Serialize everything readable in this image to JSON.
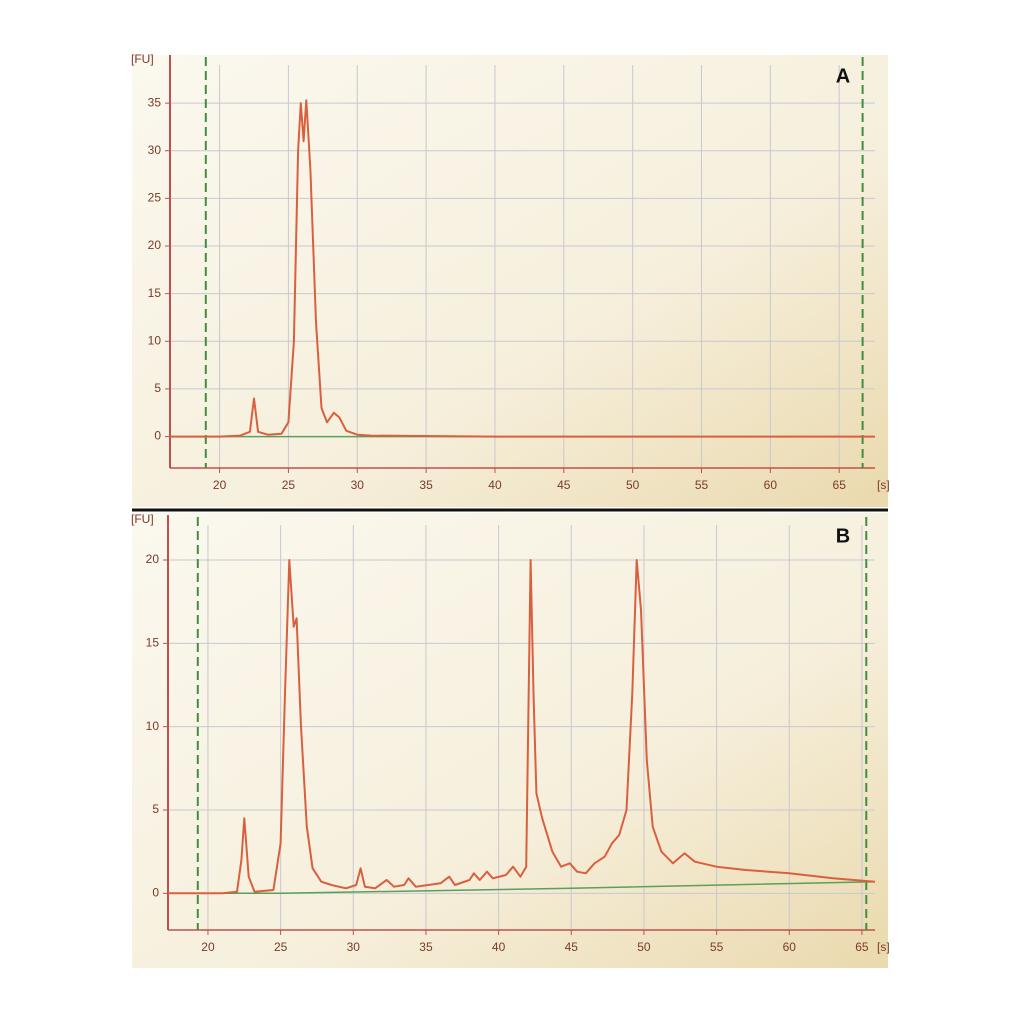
{
  "chart_data": [
    {
      "type": "line",
      "panel_label": "A",
      "y_label": "[FU]",
      "x_label": "[s]",
      "xlim": [
        16.4,
        67.6
      ],
      "ylim": [
        -3.3,
        39
      ],
      "xticks": [
        20,
        25,
        30,
        35,
        40,
        45,
        50,
        55,
        60,
        65
      ],
      "yticks": [
        0,
        5,
        10,
        15,
        20,
        25,
        30,
        35
      ],
      "grid": true,
      "markers": [
        19,
        66.7
      ],
      "marker_color": "#3f8f3f",
      "x": [
        16.4,
        20,
        21.5,
        22.2,
        22.5,
        22.8,
        23.5,
        24.5,
        25,
        25.4,
        25.7,
        25.9,
        26.1,
        26.3,
        26.6,
        27,
        27.4,
        27.8,
        28.3,
        28.7,
        29.2,
        30,
        31,
        40,
        67.6
      ],
      "series": [
        {
          "color": "#d9603f",
          "values": [
            0,
            0,
            0.1,
            0.5,
            4,
            0.5,
            0.2,
            0.3,
            1.5,
            10,
            30,
            35,
            31,
            35.3,
            28,
            12,
            3,
            1.5,
            2.5,
            2,
            0.6,
            0.2,
            0.1,
            0,
            0
          ]
        }
      ],
      "baseline": {
        "color": "#5aa05a",
        "x": [
          16.4,
          67.6
        ],
        "values": [
          0,
          0
        ]
      }
    },
    {
      "type": "line",
      "panel_label": "B",
      "y_label": "[FU]",
      "x_label": "[s]",
      "xlim": [
        17.25,
        65.9
      ],
      "ylim": [
        -2.2,
        22.1
      ],
      "xticks": [
        20,
        25,
        30,
        35,
        40,
        45,
        50,
        55,
        60,
        65
      ],
      "yticks": [
        0,
        5,
        10,
        15,
        20
      ],
      "grid": true,
      "markers": [
        19.3,
        65.3
      ],
      "marker_color": "#3f8f3f",
      "x": [
        17.25,
        21,
        22,
        22.3,
        22.5,
        22.8,
        23.2,
        24.5,
        25,
        25.3,
        25.6,
        25.9,
        26.1,
        26.4,
        26.8,
        27.2,
        27.8,
        28.5,
        29.5,
        30.2,
        30.5,
        30.8,
        31.5,
        32.3,
        32.8,
        33.5,
        33.8,
        34.3,
        36,
        36.6,
        37,
        38,
        38.3,
        38.7,
        39.2,
        39.6,
        40.5,
        41,
        41.5,
        41.9,
        42.2,
        42.4,
        42.6,
        43,
        43.7,
        44.3,
        44.9,
        45.4,
        46,
        46.6,
        47.3,
        47.8,
        48.3,
        48.8,
        49.2,
        49.5,
        49.8,
        50.2,
        50.6,
        51.2,
        52,
        52.8,
        53.5,
        55,
        57,
        60,
        63,
        65.9
      ],
      "series": [
        {
          "color": "#d9603f",
          "values": [
            0,
            0,
            0.1,
            2,
            4.5,
            1,
            0.1,
            0.2,
            3,
            12,
            20,
            16,
            16.5,
            10,
            4,
            1.5,
            0.7,
            0.5,
            0.3,
            0.5,
            1.5,
            0.4,
            0.3,
            0.8,
            0.4,
            0.5,
            0.9,
            0.4,
            0.6,
            1.0,
            0.5,
            0.8,
            1.2,
            0.8,
            1.3,
            0.9,
            1.1,
            1.6,
            1.0,
            1.6,
            20,
            12,
            6,
            4.5,
            2.5,
            1.6,
            1.8,
            1.3,
            1.2,
            1.8,
            2.2,
            3,
            3.5,
            5,
            12,
            20,
            17,
            8,
            4,
            2.5,
            1.8,
            2.4,
            1.9,
            1.6,
            1.4,
            1.2,
            0.9,
            0.7
          ]
        }
      ],
      "baseline": {
        "color": "#5aa05a",
        "x": [
          17.25,
          25,
          45,
          65.9
        ],
        "values": [
          0,
          0,
          0.3,
          0.7
        ]
      }
    }
  ]
}
